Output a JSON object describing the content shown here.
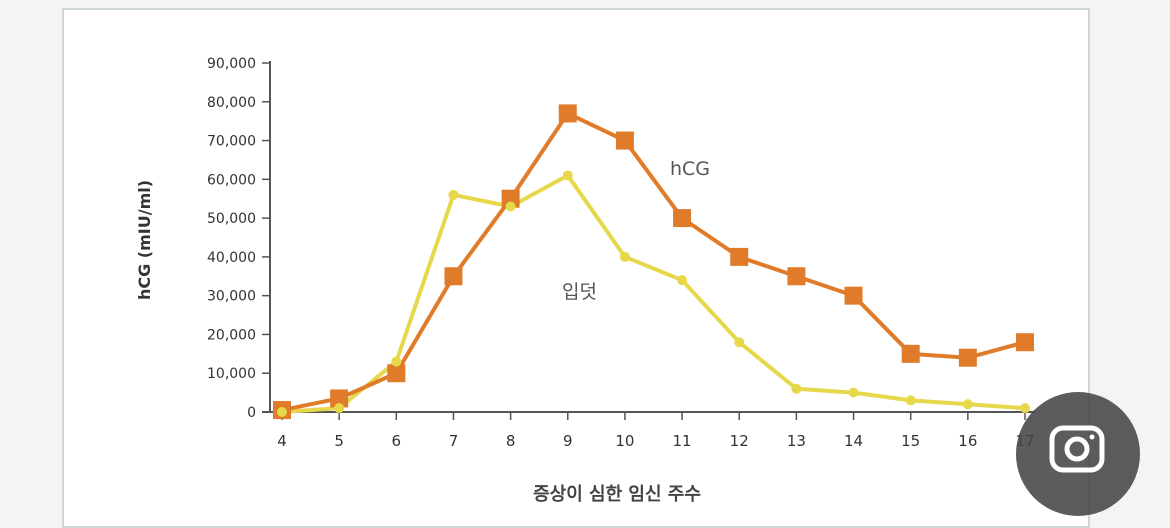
{
  "chart_data": {
    "type": "line",
    "ylabel": "hCG (mIU/ml)",
    "xlabel": "증상이 심한 임신 주수",
    "x": [
      4,
      5,
      6,
      7,
      8,
      9,
      10,
      11,
      12,
      13,
      14,
      15,
      16,
      17
    ],
    "x_tick_labels": [
      "4",
      "5",
      "6",
      "7",
      "8",
      "9",
      "10",
      "11",
      "12",
      "13",
      "14",
      "15",
      "16",
      "17"
    ],
    "ylim": [
      0,
      90000
    ],
    "y_tick_labels": [
      "0",
      "10,000",
      "20,000",
      "30,000",
      "40,000",
      "50,000",
      "60,000",
      "70,000",
      "80,000",
      "90,000"
    ],
    "y_ticks": [
      0,
      10000,
      20000,
      30000,
      40000,
      50000,
      60000,
      70000,
      80000,
      90000
    ],
    "series": [
      {
        "name": "hCG",
        "color": "#e07b2a",
        "marker": "square",
        "values": [
          500,
          3500,
          10000,
          35000,
          55000,
          77000,
          70000,
          50000,
          40000,
          35000,
          30000,
          15000,
          14000,
          18000
        ]
      },
      {
        "name": "입덧",
        "color": "#e6d84a",
        "marker": "diamond",
        "values": [
          0,
          1000,
          13000,
          56000,
          53000,
          61000,
          40000,
          34000,
          18000,
          6000,
          5000,
          3000,
          2000,
          1000
        ]
      }
    ],
    "grid": false,
    "legend": "inline labels"
  },
  "overlay": {
    "camera_icon": "camera-lens-icon"
  }
}
